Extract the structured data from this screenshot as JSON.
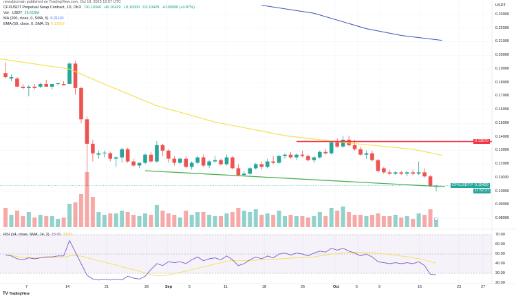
{
  "header": {
    "published": "newsbtcmain published on TradingView.com, Oct 19, 2023 12:07 UTC",
    "symbol": "CFXUSDT Perpetual Swap Contract, 1D, OKX",
    "open": "O0.10340",
    "high": "H0.10429",
    "low": "L0.10000",
    "close": "C0.10429",
    "change": "+0.00090 (+0.87%)",
    "vol_label": "Vol · USDT",
    "vol_value": "26.619M",
    "ma_label": "MA (200, close, 0, SMA, 5)",
    "ma_value": "0.21110",
    "ema_label": "EMA (50, close, 0, SMA, 5)",
    "ema_value": "0.12662",
    "rsi_label": "RSI (14, close, SMA, 14, 2)",
    "rsi_value": "28.45",
    "rsi_ma_value": "33.83"
  },
  "price_axis": {
    "unit": "USDT",
    "ticks": [
      "0.23000",
      "0.22000",
      "0.21000",
      "0.20000",
      "0.19000",
      "0.18000",
      "0.17000",
      "0.16000",
      "0.15000",
      "0.14000",
      "0.13000",
      "0.12000",
      "0.11000",
      "0.10000",
      "0.09000",
      "0.08000"
    ],
    "resistance_tag": "0.13670",
    "symbol_tag": "CFXUSDT.P",
    "last_price_tag": "0.10429",
    "countdown_tag": "11:52:37"
  },
  "rsi_axis": {
    "ticks": [
      "70.00",
      "60.00",
      "50.00",
      "40.00",
      "30.00",
      "20.00"
    ]
  },
  "time_axis": {
    "labels": [
      "7",
      "14",
      "21",
      "28",
      "Sep",
      "5",
      "11",
      "18",
      "25",
      "Oct",
      "5",
      "9",
      "16",
      "23",
      "27"
    ]
  },
  "footer": {
    "brand": "TradingView"
  },
  "colors": {
    "up": "#26a69a",
    "down": "#ef5350",
    "ma": "#3f51b5",
    "ema": "#f5e050",
    "support": "#4caf50",
    "resistance": "#f23645",
    "rsi": "#7e57c2"
  },
  "chart_data": {
    "type": "candlestick",
    "title": "CFXUSDT Perpetual Swap Contract, 1D, OKX",
    "ylim": [
      0.08,
      0.23
    ],
    "ohlc": [
      [
        0.187,
        0.195,
        0.183,
        0.184
      ],
      [
        0.183,
        0.186,
        0.181,
        0.184
      ],
      [
        0.183,
        0.184,
        0.177,
        0.177
      ],
      [
        0.177,
        0.179,
        0.175,
        0.176
      ],
      [
        0.176,
        0.178,
        0.17,
        0.177
      ],
      [
        0.177,
        0.179,
        0.175,
        0.176
      ],
      [
        0.177,
        0.18,
        0.176,
        0.179
      ],
      [
        0.179,
        0.182,
        0.177,
        0.177
      ],
      [
        0.177,
        0.179,
        0.175,
        0.179
      ],
      [
        0.179,
        0.18,
        0.178,
        0.1795
      ],
      [
        0.179,
        0.181,
        0.178,
        0.178
      ],
      [
        0.179,
        0.195,
        0.179,
        0.194
      ],
      [
        0.194,
        0.196,
        0.171,
        0.176
      ],
      [
        0.176,
        0.177,
        0.15,
        0.153
      ],
      [
        0.153,
        0.155,
        0.104,
        0.135
      ],
      [
        0.135,
        0.138,
        0.122,
        0.128
      ],
      [
        0.127,
        0.13,
        0.124,
        0.128
      ],
      [
        0.128,
        0.13,
        0.125,
        0.1285
      ],
      [
        0.128,
        0.129,
        0.122,
        0.124
      ],
      [
        0.124,
        0.126,
        0.118,
        0.125
      ],
      [
        0.125,
        0.132,
        0.121,
        0.131
      ],
      [
        0.131,
        0.132,
        0.121,
        0.122
      ],
      [
        0.122,
        0.124,
        0.118,
        0.119
      ],
      [
        0.119,
        0.121,
        0.117,
        0.121
      ],
      [
        0.121,
        0.128,
        0.12,
        0.127
      ],
      [
        0.127,
        0.129,
        0.121,
        0.122
      ],
      [
        0.122,
        0.137,
        0.121,
        0.134
      ],
      [
        0.134,
        0.135,
        0.126,
        0.13
      ],
      [
        0.13,
        0.131,
        0.121,
        0.124
      ],
      [
        0.124,
        0.126,
        0.119,
        0.121
      ],
      [
        0.121,
        0.125,
        0.12,
        0.124
      ],
      [
        0.124,
        0.126,
        0.117,
        0.118
      ],
      [
        0.118,
        0.122,
        0.116,
        0.121
      ],
      [
        0.121,
        0.126,
        0.12,
        0.125
      ],
      [
        0.125,
        0.127,
        0.118,
        0.119
      ],
      [
        0.119,
        0.123,
        0.117,
        0.122
      ],
      [
        0.122,
        0.126,
        0.121,
        0.123
      ],
      [
        0.123,
        0.124,
        0.119,
        0.12
      ],
      [
        0.12,
        0.127,
        0.119,
        0.125
      ],
      [
        0.125,
        0.126,
        0.116,
        0.117
      ],
      [
        0.117,
        0.12,
        0.111,
        0.112
      ],
      [
        0.112,
        0.115,
        0.111,
        0.113
      ],
      [
        0.113,
        0.118,
        0.112,
        0.117
      ],
      [
        0.117,
        0.121,
        0.116,
        0.12
      ],
      [
        0.12,
        0.122,
        0.116,
        0.118
      ],
      [
        0.118,
        0.124,
        0.117,
        0.122
      ],
      [
        0.122,
        0.126,
        0.12,
        0.121
      ],
      [
        0.121,
        0.127,
        0.12,
        0.126
      ],
      [
        0.126,
        0.128,
        0.124,
        0.127
      ],
      [
        0.127,
        0.129,
        0.124,
        0.125
      ],
      [
        0.125,
        0.128,
        0.123,
        0.127
      ],
      [
        0.127,
        0.13,
        0.125,
        0.126
      ],
      [
        0.126,
        0.127,
        0.122,
        0.123
      ],
      [
        0.123,
        0.126,
        0.121,
        0.125
      ],
      [
        0.125,
        0.13,
        0.124,
        0.129
      ],
      [
        0.129,
        0.131,
        0.127,
        0.128
      ],
      [
        0.128,
        0.137,
        0.127,
        0.136
      ],
      [
        0.136,
        0.139,
        0.132,
        0.133
      ],
      [
        0.133,
        0.141,
        0.132,
        0.138
      ],
      [
        0.138,
        0.141,
        0.133,
        0.134
      ],
      [
        0.134,
        0.138,
        0.13,
        0.131
      ],
      [
        0.131,
        0.133,
        0.126,
        0.127
      ],
      [
        0.127,
        0.13,
        0.124,
        0.128
      ],
      [
        0.128,
        0.13,
        0.122,
        0.123
      ],
      [
        0.123,
        0.124,
        0.114,
        0.115
      ],
      [
        0.117,
        0.118,
        0.113,
        0.114
      ],
      [
        0.114,
        0.116,
        0.112,
        0.113
      ],
      [
        0.113,
        0.115,
        0.112,
        0.114
      ],
      [
        0.114,
        0.115,
        0.112,
        0.113
      ],
      [
        0.113,
        0.115,
        0.111,
        0.114
      ],
      [
        0.114,
        0.116,
        0.112,
        0.113
      ],
      [
        0.113,
        0.122,
        0.112,
        0.114
      ],
      [
        0.114,
        0.117,
        0.11,
        0.111
      ],
      [
        0.111,
        0.112,
        0.103,
        0.104
      ],
      [
        0.1034,
        0.1045,
        0.1,
        0.10429
      ]
    ],
    "volume_m": [
      70,
      45,
      60,
      40,
      55,
      35,
      45,
      40,
      40,
      30,
      35,
      85,
      90,
      120,
      200,
      110,
      55,
      45,
      50,
      50,
      60,
      55,
      45,
      40,
      50,
      45,
      80,
      60,
      50,
      45,
      35,
      60,
      45,
      55,
      55,
      45,
      40,
      40,
      50,
      55,
      70,
      60,
      55,
      65,
      45,
      50,
      45,
      60,
      40,
      45,
      40,
      40,
      35,
      40,
      55,
      40,
      70,
      60,
      75,
      55,
      45,
      45,
      40,
      45,
      50,
      40,
      40,
      45,
      35,
      40,
      30,
      50,
      45,
      65,
      27
    ],
    "ema50": [
      [
        -1,
        0.1975
      ],
      [
        11,
        0.19
      ],
      [
        17.5,
        0.178
      ],
      [
        26,
        0.163
      ],
      [
        36,
        0.151
      ],
      [
        48,
        0.141
      ],
      [
        58,
        0.136
      ],
      [
        64,
        0.1335
      ],
      [
        70,
        0.131
      ],
      [
        75,
        0.1266
      ]
    ],
    "ma200": [
      [
        44,
        0.2369
      ],
      [
        53,
        0.231
      ],
      [
        62,
        0.2197
      ],
      [
        68,
        0.2147
      ],
      [
        75,
        0.2111
      ]
    ],
    "support_line": [
      [
        24,
        0.1152
      ],
      [
        75.5,
        0.1034
      ]
    ],
    "resistance_level": 0.1367,
    "resistance_start": 50,
    "rsi": [
      49,
      48,
      45,
      44,
      46,
      45,
      46,
      47,
      47,
      48,
      48,
      64,
      52,
      40,
      28,
      24,
      23,
      24,
      23,
      24,
      23,
      27,
      25,
      24,
      27,
      34,
      40,
      38,
      42,
      41,
      42,
      40,
      44,
      47,
      43,
      45,
      46,
      44,
      48,
      44,
      38,
      40,
      44,
      47,
      45,
      48,
      46,
      50,
      51,
      49,
      51,
      50,
      48,
      51,
      53,
      52,
      56,
      54,
      56,
      53,
      51,
      48,
      50,
      47,
      42,
      41,
      40,
      41,
      40,
      41,
      40,
      42,
      38,
      29,
      28.45
    ]
  }
}
